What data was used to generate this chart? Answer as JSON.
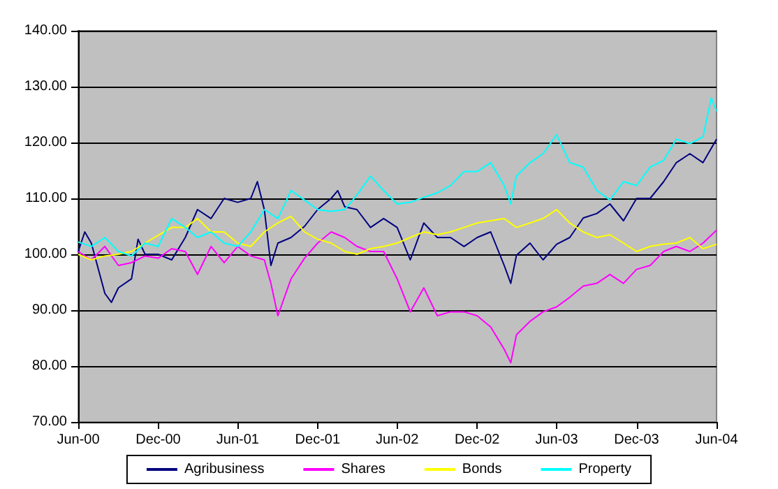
{
  "chart_data": {
    "type": "line",
    "xlim": [
      "2000-06",
      "2004-06"
    ],
    "xticks": [
      {
        "value": "2000-06",
        "label": "Jun-00"
      },
      {
        "value": "2000-12",
        "label": "Dec-00"
      },
      {
        "value": "2001-06",
        "label": "Jun-01"
      },
      {
        "value": "2001-12",
        "label": "Dec-01"
      },
      {
        "value": "2002-06",
        "label": "Jun-02"
      },
      {
        "value": "2002-12",
        "label": "Dec-02"
      },
      {
        "value": "2003-06",
        "label": "Jun-03"
      },
      {
        "value": "2003-12",
        "label": "Dec-03"
      },
      {
        "value": "2004-06",
        "label": "Jun-04"
      }
    ],
    "ylim": [
      70,
      140
    ],
    "yticks": [
      {
        "value": 70,
        "label": "70.00"
      },
      {
        "value": 80,
        "label": "80.00"
      },
      {
        "value": 90,
        "label": "90.00"
      },
      {
        "value": 100,
        "label": "100.00"
      },
      {
        "value": 110,
        "label": "110.00"
      },
      {
        "value": 120,
        "label": "120.00"
      },
      {
        "value": 130,
        "label": "130.00"
      },
      {
        "value": 140,
        "label": "140.00"
      }
    ],
    "grid": "y",
    "legend": "bottom",
    "marker": "none",
    "line_style": "solid",
    "x": [
      "2000-06",
      "2000-07",
      "2000-08",
      "2000-09",
      "2000-10",
      "2000-11",
      "2000-12",
      "2001-01",
      "2001-02",
      "2001-03",
      "2001-04",
      "2001-05",
      "2001-06",
      "2001-07",
      "2001-08",
      "2001-09",
      "2001-10",
      "2001-11",
      "2001-12",
      "2002-01",
      "2002-02",
      "2002-03",
      "2002-04",
      "2002-05",
      "2002-06",
      "2002-07",
      "2002-08",
      "2002-09",
      "2002-10",
      "2002-11",
      "2002-12",
      "2003-01",
      "2003-02",
      "2003-03",
      "2003-04",
      "2003-05",
      "2003-06",
      "2003-07",
      "2003-08",
      "2003-09",
      "2003-10",
      "2003-11",
      "2003-12",
      "2004-01",
      "2004-02",
      "2004-03",
      "2004-04",
      "2004-05",
      "2004-06"
    ],
    "series": [
      {
        "name": "Agribusiness",
        "color": "#000080",
        "x": [
          "2000-06",
          "2000-06-16",
          "2000-07",
          "2000-08",
          "2000-08-16",
          "2000-09",
          "2000-10",
          "2000-10-16",
          "2000-11",
          "2000-12",
          "2001-01",
          "2001-02",
          "2001-03",
          "2001-04",
          "2001-05",
          "2001-06",
          "2001-07",
          "2001-07-16",
          "2001-08",
          "2001-08-16",
          "2001-09",
          "2001-10",
          "2001-11",
          "2001-12",
          "2002-01",
          "2002-01-16",
          "2002-02",
          "2002-03",
          "2002-04",
          "2002-05",
          "2002-06",
          "2002-07",
          "2002-08",
          "2002-09",
          "2002-10",
          "2002-11",
          "2002-12",
          "2003-01",
          "2003-02",
          "2003-02-16",
          "2003-03",
          "2003-04",
          "2003-05",
          "2003-06",
          "2003-07",
          "2003-08",
          "2003-09",
          "2003-10",
          "2003-11",
          "2003-12",
          "2004-01",
          "2004-02",
          "2004-03",
          "2004-04",
          "2004-05",
          "2004-06"
        ],
        "values": [
          100.5,
          104,
          102,
          93,
          91.4,
          94,
          95.6,
          102.7,
          100,
          100,
          99,
          103,
          108,
          106.4,
          110,
          109.3,
          110,
          113,
          108,
          98,
          102,
          103,
          105,
          108,
          110,
          111.4,
          108.5,
          108,
          104.8,
          106.4,
          104.8,
          99,
          105.6,
          103,
          103,
          101.4,
          103,
          104,
          98,
          94.8,
          99.8,
          102,
          99,
          101.8,
          103,
          106.5,
          107.3,
          109,
          106,
          110,
          110,
          113,
          116.4,
          118,
          116.4,
          120.6
        ]
      },
      {
        "name": "Shares",
        "color": "#ff00ff",
        "x": [
          "2000-06",
          "2000-07",
          "2000-08",
          "2000-09",
          "2000-10",
          "2000-11",
          "2000-12",
          "2001-01",
          "2001-02",
          "2001-03",
          "2001-04",
          "2001-05",
          "2001-06",
          "2001-07",
          "2001-08",
          "2001-08-16",
          "2001-09",
          "2001-10",
          "2001-11",
          "2001-12",
          "2002-01",
          "2002-02",
          "2002-03",
          "2002-04",
          "2002-05",
          "2002-06",
          "2002-07",
          "2002-08",
          "2002-09",
          "2002-10",
          "2002-11",
          "2002-12",
          "2003-01",
          "2003-02",
          "2003-02-16",
          "2003-03",
          "2003-04",
          "2003-05",
          "2003-06",
          "2003-07",
          "2003-08",
          "2003-09",
          "2003-10",
          "2003-11",
          "2003-12",
          "2004-01",
          "2004-02",
          "2004-03",
          "2004-04",
          "2004-05",
          "2004-06"
        ],
        "values": [
          100.5,
          99,
          101.4,
          98,
          98.5,
          99.7,
          99.3,
          101,
          100.5,
          96.4,
          101.4,
          98.5,
          101.4,
          99.7,
          99,
          94.8,
          89,
          95.6,
          99.3,
          102,
          104,
          103,
          101.4,
          100.5,
          100.5,
          95.6,
          89.7,
          94,
          89,
          89.7,
          89.7,
          89,
          87,
          83,
          80.6,
          85.6,
          88,
          89.7,
          90.6,
          92.3,
          94.3,
          94.8,
          96.4,
          94.8,
          97.3,
          98,
          100.5,
          101.4,
          100.5,
          102,
          104.3
        ]
      },
      {
        "name": "Bonds",
        "color": "#ffff00",
        "values": [
          100,
          99,
          99.7,
          100,
          100.5,
          102,
          103.4,
          104.8,
          104.8,
          106.4,
          104,
          104,
          102,
          101.4,
          104,
          105.6,
          106.8,
          104,
          102.7,
          102,
          100.5,
          100,
          101,
          101.4,
          102,
          103,
          104,
          103.5,
          104,
          104.8,
          105.6,
          106,
          106.4,
          104.8,
          105.6,
          106.4,
          108,
          105.6,
          104,
          103,
          103.5,
          102,
          100.5,
          101.4,
          101.8,
          102,
          103,
          101,
          101.8
        ]
      },
      {
        "name": "Property",
        "color": "#00ffff",
        "x": [
          "2000-06",
          "2000-07",
          "2000-08",
          "2000-09",
          "2000-10",
          "2000-11",
          "2000-12",
          "2001-01",
          "2001-02",
          "2001-03",
          "2001-04",
          "2001-05",
          "2001-06",
          "2001-07",
          "2001-08",
          "2001-09",
          "2001-10",
          "2001-11",
          "2001-12",
          "2002-01",
          "2002-02",
          "2002-03",
          "2002-04",
          "2002-05",
          "2002-06",
          "2002-07",
          "2002-08",
          "2002-09",
          "2002-10",
          "2002-11",
          "2002-12",
          "2003-01",
          "2003-02",
          "2003-02-16",
          "2003-03",
          "2003-04",
          "2003-05",
          "2003-06",
          "2003-07",
          "2003-08",
          "2003-09",
          "2003-10",
          "2003-11",
          "2003-12",
          "2004-01",
          "2004-02",
          "2004-03",
          "2004-04",
          "2004-05",
          "2004-05-20",
          "2004-06"
        ],
        "values": [
          102.2,
          101.4,
          103,
          100.5,
          99.7,
          102,
          101.4,
          106.4,
          104.8,
          103,
          104,
          102,
          101.4,
          104,
          108,
          106.4,
          111.4,
          109.7,
          108,
          107.7,
          108,
          110.6,
          114,
          111.4,
          109,
          109.3,
          110.2,
          111,
          112.3,
          114.8,
          114.8,
          116.4,
          112.3,
          109,
          114,
          116.4,
          118,
          121.4,
          116.4,
          115.6,
          111.4,
          109.7,
          113,
          112.3,
          115.6,
          116.8,
          120.6,
          119.8,
          121,
          128,
          125.6
        ]
      }
    ]
  }
}
